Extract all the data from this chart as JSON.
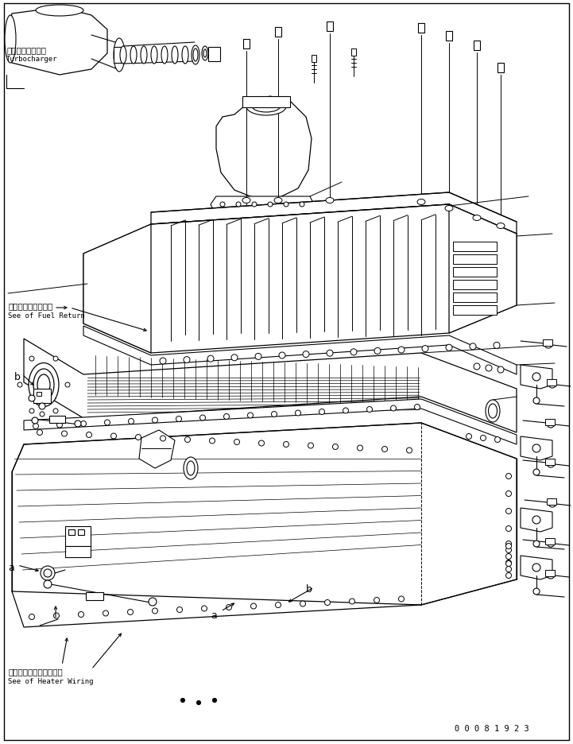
{
  "background_color": "#ffffff",
  "line_color": "#000000",
  "fig_width": 7.21,
  "fig_height": 9.37,
  "dpi": 100,
  "label_turbocharger_jp": "ターボチャージャ",
  "label_turbocharger_en": "Turbocharger",
  "label_fuel_return_jp": "フェルリターン参照",
  "label_fuel_return_en": "See of Fuel Return",
  "label_heater_wiring_jp": "ヒータワイヤリング参照",
  "label_heater_wiring_en": "See of Heater Wiring",
  "label_b_left": "b",
  "label_a_left": "a",
  "label_a_bottom": "a",
  "label_b_bottom": "b",
  "part_number": "0 0 0 8 1 9 2 3",
  "border_lw": 1.0
}
